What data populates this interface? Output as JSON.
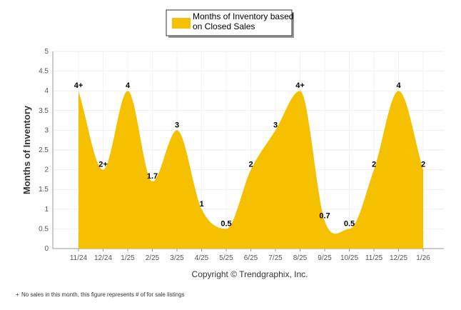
{
  "chart_data": {
    "type": "area",
    "legend": {
      "line1": "Months of Inventory based",
      "line2": "on Closed Sales",
      "color": "#F5C000",
      "placement": "top-center"
    },
    "ylabel": "Months of Inventory",
    "xlabel": "",
    "ylim": [
      0,
      5
    ],
    "yticks": [
      "0",
      "0.5",
      "1",
      "1.5",
      "2",
      "2.5",
      "3",
      "3.5",
      "4",
      "4.5",
      "5"
    ],
    "grid": true,
    "categories": [
      "11/24",
      "12/24",
      "1/25",
      "2/25",
      "3/25",
      "4/25",
      "5/25",
      "6/25",
      "7/25",
      "8/25",
      "9/25",
      "10/25",
      "11/25",
      "12/25",
      "1/26"
    ],
    "series": [
      {
        "name": "Months of Inventory based on Closed Sales",
        "values": [
          4,
          2,
          4,
          1.7,
          3,
          1,
          0.5,
          2,
          3,
          4,
          0.7,
          0.5,
          2,
          4,
          2
        ],
        "labels": [
          "4+",
          "2+",
          "4",
          "1.7",
          "3",
          "1",
          "0.5",
          "2",
          "3",
          "4+",
          "0.7",
          "0.5",
          "2",
          "4",
          "2"
        ]
      }
    ],
    "copyright": "Copyright © Trendgraphix, Inc.",
    "footnote_symbol": "+",
    "footnote": "No sales in this month, this figure represents # of for sale listings"
  }
}
